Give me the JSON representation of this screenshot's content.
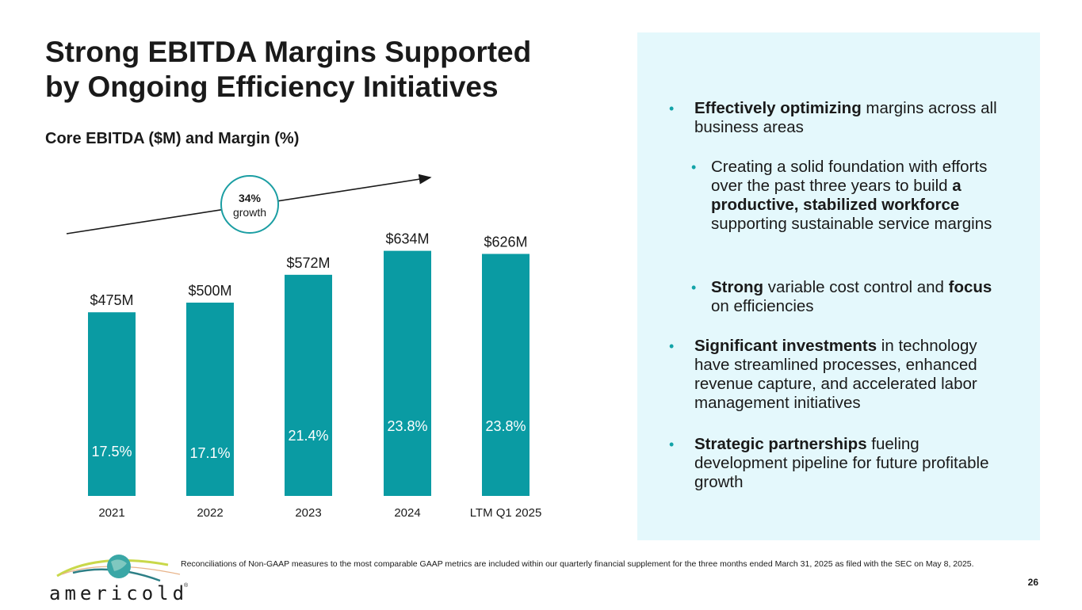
{
  "slide": {
    "title_line1": "Strong EBITDA Margins Supported",
    "title_line2": "by Ongoing Efficiency Initiatives",
    "subtitle": "Core EBITDA ($M) and Margin (%)",
    "page_number": "26",
    "footnote": "Reconciliations of Non-GAAP measures to the most comparable GAAP metrics are included within our quarterly financial supplement for the three months ended March 31, 2025 as filed with the SEC on May 8, 2025.",
    "logo_text": "americold",
    "logo_mark": "®"
  },
  "colors": {
    "bar": "#0a9ba3",
    "accent": "#12a3a8",
    "panel_bg": "#e4f8fc"
  },
  "bullets": [
    {
      "level": 1,
      "bold": "Effectively optimizing",
      "rest": " margins across all business areas"
    },
    {
      "level": 2,
      "pre": "Creating a solid foundation with efforts over the past three years to build ",
      "bold": "a productive, stabilized workforce",
      "rest": " supporting sustainable service margins"
    },
    {
      "level": 2,
      "bold": "Strong",
      "rest": " variable cost control and ",
      "bold2": "focus",
      "rest2": " on efficiencies"
    },
    {
      "level": 1,
      "bold": "Significant investments",
      "rest": " in technology have streamlined processes, enhanced revenue capture, and accelerated labor management initiatives"
    },
    {
      "level": 1,
      "bold": "Strategic partnerships",
      "rest": " fueling development pipeline for future profitable growth"
    }
  ],
  "chart_data": {
    "type": "bar",
    "title": "Core EBITDA ($M) and Margin (%)",
    "categories": [
      "2021",
      "2022",
      "2023",
      "2024",
      "LTM Q1 2025"
    ],
    "series": [
      {
        "name": "Core EBITDA ($M)",
        "values": [
          475,
          500,
          572,
          634,
          626
        ],
        "labels": [
          "$475M",
          "$500M",
          "$572M",
          "$634M",
          "$626M"
        ]
      },
      {
        "name": "Margin (%)",
        "values": [
          17.5,
          17.1,
          21.4,
          23.8,
          23.8
        ],
        "labels": [
          "17.5%",
          "17.1%",
          "21.4%",
          "23.8%",
          "23.8%"
        ]
      }
    ],
    "annotation": {
      "value": "34%",
      "text": "growth"
    },
    "xlabel": "",
    "ylabel": "",
    "ylim": [
      0,
      700
    ],
    "grid": false,
    "legend": "none"
  }
}
